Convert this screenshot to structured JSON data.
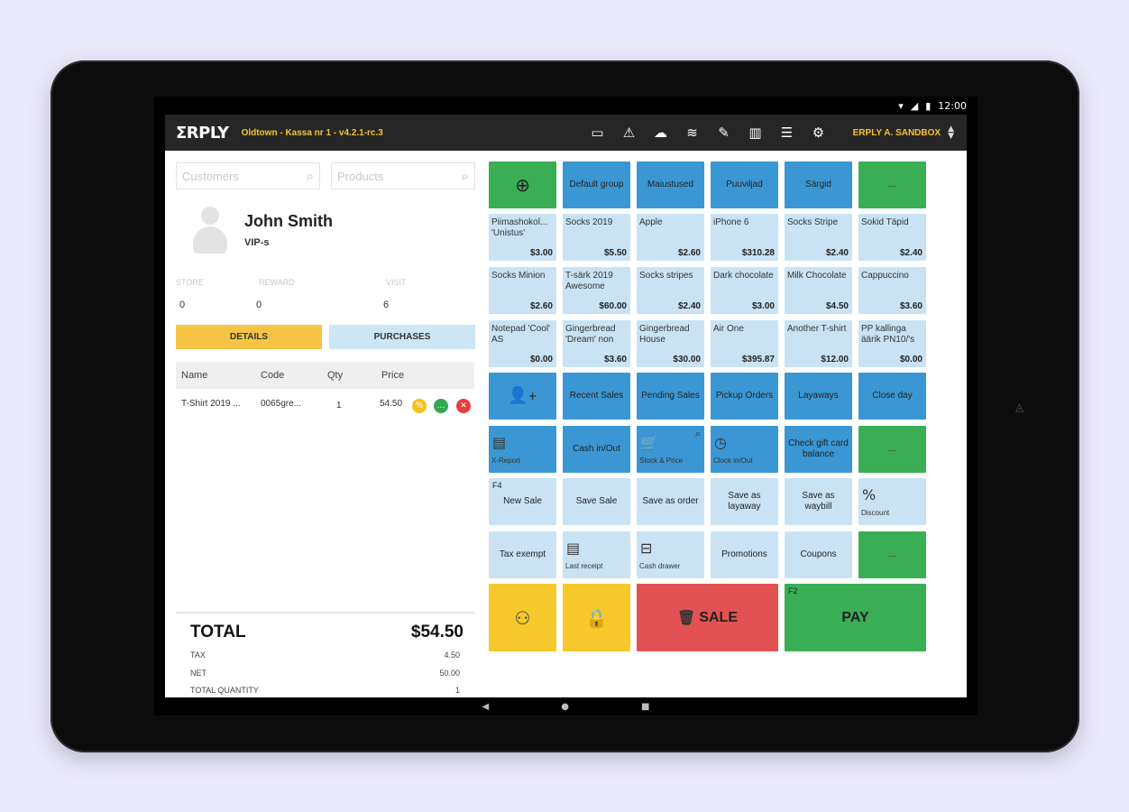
{
  "status": {
    "time": "12:00"
  },
  "topbar": {
    "logo": "ΣRPLY",
    "location": "Oldtown - Kassa nr 1 - v4.2.1-rc.3",
    "icons": [
      "chat-icon",
      "warning-icon",
      "cloud-icon",
      "wifi-icon",
      "edit-icon",
      "building-icon",
      "menu-icon",
      "settings-icon"
    ],
    "account": "ERPLY A. SANDBOX"
  },
  "search": {
    "customers_placeholder": "Customers",
    "products_placeholder": "Products"
  },
  "customer": {
    "name": "John Smith",
    "group": "VIP-s"
  },
  "stats": [
    {
      "label": "STORE",
      "value": "0"
    },
    {
      "label": "REWARD",
      "value": "0"
    },
    {
      "label": "VISIT",
      "value": "6"
    }
  ],
  "tabs": {
    "details": "DETAILS",
    "purchases": "PURCHASES"
  },
  "cart": {
    "headers": {
      "name": "Name",
      "code": "Code",
      "qty": "Qty",
      "price": "Price"
    },
    "rows": [
      {
        "name": "T-Shirt 2019 ...",
        "code": "0065gre...",
        "qty": "1",
        "price": "54.50"
      }
    ]
  },
  "totals": {
    "total_label": "TOTAL",
    "total_value": "$54.50",
    "tax_label": "TAX",
    "tax_value": "4.50",
    "net_label": "NET",
    "net_value": "50.00",
    "qty_label": "TOTAL QUANTITY",
    "qty_value": "1"
  },
  "groups": [
    "Default group",
    "Maiustused",
    "Puuviljad",
    "Särgid",
    "..."
  ],
  "products": [
    {
      "name": "Piimashokol... 'Unistus'",
      "price": "$3.00"
    },
    {
      "name": "Socks 2019",
      "price": "$5.50"
    },
    {
      "name": "Apple",
      "price": "$2.60"
    },
    {
      "name": "iPhone 6",
      "price": "$310.28"
    },
    {
      "name": "Socks Stripe",
      "price": "$2.40"
    },
    {
      "name": "Sokid Täpid",
      "price": "$2.40"
    },
    {
      "name": "Socks Minion",
      "price": "$2.60"
    },
    {
      "name": "T-särk 2019 Awesome",
      "price": "$60.00"
    },
    {
      "name": "Socks stripes",
      "price": "$2.40"
    },
    {
      "name": "Dark chocolate",
      "price": "$3.00"
    },
    {
      "name": "Milk Chocolate",
      "price": "$4.50"
    },
    {
      "name": "Cappuccino",
      "price": "$3.60"
    },
    {
      "name": "Notepad 'Cool' AS",
      "price": "$0.00"
    },
    {
      "name": "Gingerbread 'Dream' non",
      "price": "$3.60"
    },
    {
      "name": "Gingerbread House",
      "price": "$30.00"
    },
    {
      "name": "Air One",
      "price": "$395.87"
    },
    {
      "name": "Another T-shirt",
      "price": "$12.00"
    },
    {
      "name": "PP kallinga äärik PN10/'s",
      "price": "$0.00"
    }
  ],
  "actions_row1": [
    "Recent Sales",
    "Pending Sales",
    "Pickup Orders",
    "Layaways",
    "Close day"
  ],
  "actions_row2": {
    "x_report": "X-Report",
    "cash": "Cash in/Out",
    "stock": "Stock & Price",
    "clock": "Clock in/Out",
    "gift": "Check gift card balance",
    "more": "..."
  },
  "actions_row3": {
    "new_sale_key": "F4",
    "new_sale": "New Sale",
    "save_sale": "Save Sale",
    "save_order": "Save as order",
    "save_layaway": "Save as layaway",
    "save_waybill": "Save as waybill",
    "discount": "Discount"
  },
  "actions_row4": {
    "tax_exempt": "Tax exempt",
    "last_receipt": "Last receipt",
    "cash_drawer": "Cash drawer",
    "promotions": "Promotions",
    "coupons": "Coupons",
    "more": "..."
  },
  "bottom": {
    "sale": "SALE",
    "pay_key": "F2",
    "pay": "PAY"
  }
}
